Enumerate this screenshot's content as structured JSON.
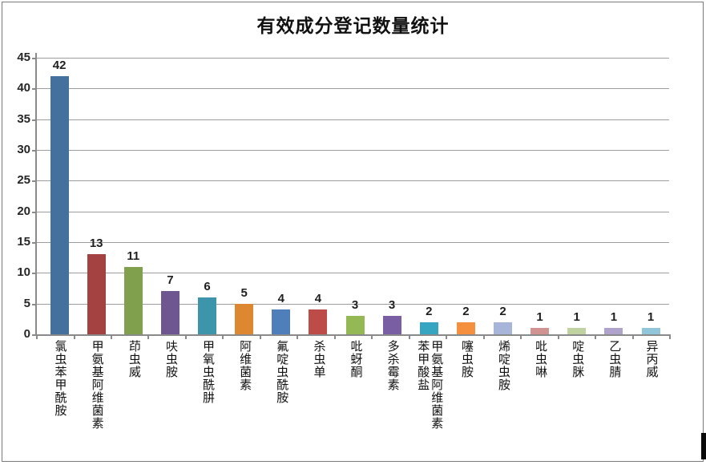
{
  "window": {
    "background": "#ffffff",
    "border_color": "#7b7b7b"
  },
  "chart_data": {
    "type": "bar",
    "title": "有效成分登记数量统计",
    "categories": [
      "氯虫苯甲酰胺",
      "甲氨基阿维菌素",
      "茚虫威",
      "呋虫胺",
      "甲氧虫酰肼",
      "阿维菌素",
      "氟啶虫酰胺",
      "杀虫单",
      "吡蚜酮",
      "多杀霉素",
      "甲氨基阿维菌素苯甲酸盐",
      "噻虫胺",
      "烯啶虫胺",
      "吡虫啉",
      "啶虫脒",
      "乙虫腈",
      "异丙威"
    ],
    "values": [
      42,
      13,
      11,
      7,
      6,
      5,
      4,
      4,
      3,
      3,
      2,
      2,
      2,
      1,
      1,
      1,
      1
    ],
    "bar_colors": [
      "#44709d",
      "#a34240",
      "#80a04e",
      "#6e5691",
      "#3d95ab",
      "#de8731",
      "#4f7fba",
      "#bd4b47",
      "#94b853",
      "#7a5ea4",
      "#35a5c1",
      "#f5913e",
      "#a6b5d8",
      "#d09391",
      "#bfd2a0",
      "#afa3cc",
      "#90c6d9"
    ],
    "xlabel": "",
    "ylabel": "",
    "ylim": [
      0,
      45
    ],
    "yticks": [
      0,
      5,
      10,
      15,
      20,
      25,
      30,
      35,
      40,
      45
    ],
    "grid": true,
    "legend": "none",
    "value_labels_shown": true
  },
  "styles": {
    "gridline_color": "#9d9d9d",
    "axis_color": "#8a8a8a",
    "tick_text_color": "#262626",
    "label_text_color": "#111111",
    "marker_color": "#0a0a0a"
  }
}
